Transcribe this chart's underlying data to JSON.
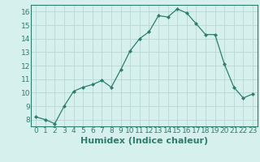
{
  "x": [
    0,
    1,
    2,
    3,
    4,
    5,
    6,
    7,
    8,
    9,
    10,
    11,
    12,
    13,
    14,
    15,
    16,
    17,
    18,
    19,
    20,
    21,
    22,
    23
  ],
  "y": [
    8.2,
    8.0,
    7.7,
    9.0,
    10.1,
    10.4,
    10.6,
    10.9,
    10.4,
    11.7,
    13.1,
    14.0,
    14.5,
    15.7,
    15.6,
    16.2,
    15.9,
    15.1,
    14.3,
    14.3,
    12.1,
    10.4,
    9.6,
    9.9
  ],
  "line_color": "#2e7d6e",
  "marker": "D",
  "marker_size": 2.0,
  "bg_color": "#d6f0ee",
  "grid_color": "#b8d8d4",
  "xlabel": "Humidex (Indice chaleur)",
  "ylim": [
    7.5,
    16.5
  ],
  "xlim": [
    -0.5,
    23.5
  ],
  "yticks": [
    8,
    9,
    10,
    11,
    12,
    13,
    14,
    15,
    16
  ],
  "xticks": [
    0,
    1,
    2,
    3,
    4,
    5,
    6,
    7,
    8,
    9,
    10,
    11,
    12,
    13,
    14,
    15,
    16,
    17,
    18,
    19,
    20,
    21,
    22,
    23
  ],
  "tick_label_fontsize": 6.5,
  "xlabel_fontsize": 8.0,
  "spine_color": "#2e7d6e"
}
